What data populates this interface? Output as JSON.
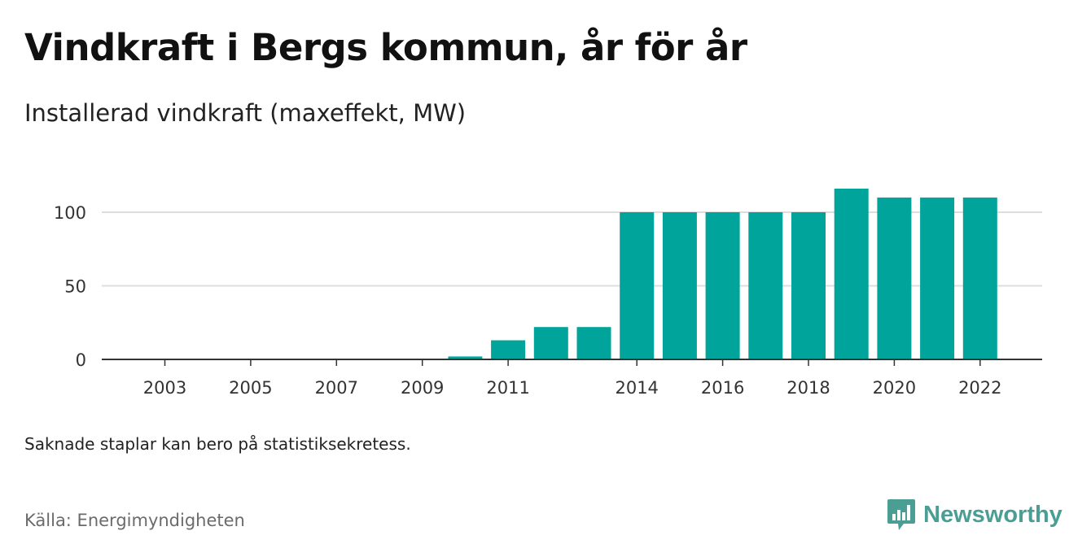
{
  "header": {
    "title": "Vindkraft i Bergs kommun, år för år",
    "subtitle": "Installerad vindkraft (maxeffekt, MW)"
  },
  "footer": {
    "note": "Saknade staplar kan bero på statistiksekretess.",
    "source": "Källa: Energimyndigheten",
    "brand": "Newsworthy"
  },
  "colors": {
    "bar": "#00a49a",
    "grid": "#dddddd",
    "axis": "#333333",
    "brand": "#4a9e94"
  },
  "icons": {
    "brand_logo": "newsworthy-logo-icon"
  },
  "chart_data": {
    "type": "bar",
    "title": "Vindkraft i Bergs kommun, år för år",
    "subtitle": "Installerad vindkraft (maxeffekt, MW)",
    "xlabel": "",
    "ylabel": "",
    "categories": [
      2003,
      2004,
      2005,
      2006,
      2007,
      2008,
      2009,
      2010,
      2011,
      2012,
      2013,
      2014,
      2015,
      2016,
      2017,
      2018,
      2019,
      2020,
      2021,
      2022
    ],
    "values": [
      0,
      0,
      0,
      0,
      0,
      0,
      0,
      2,
      13,
      22,
      22,
      100,
      100,
      100,
      100,
      100,
      116,
      110,
      110,
      110
    ],
    "x_tick_labels": [
      "2003",
      "2005",
      "2007",
      "2009",
      "2011",
      "2014",
      "2016",
      "2018",
      "2020",
      "2022"
    ],
    "y_ticks": [
      0,
      50,
      100
    ],
    "ylim": [
      0,
      120
    ],
    "grid": true,
    "legend": "none"
  }
}
